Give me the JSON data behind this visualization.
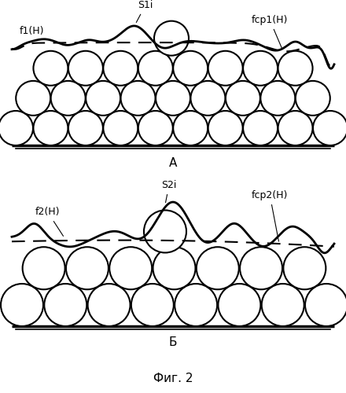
{
  "title": "Фиг. 2",
  "panel_b_label": "Б",
  "panel_a_label": "A",
  "s2i_label": "S2i",
  "s1i_label": "S1i",
  "f2h_label": "f2(H)",
  "fcp2h_label": "fcp2(H)",
  "f1h_label": "f1(H)",
  "fcp1h_label": "fcp1(H)",
  "bg_color": "#ffffff",
  "line_color": "#000000"
}
